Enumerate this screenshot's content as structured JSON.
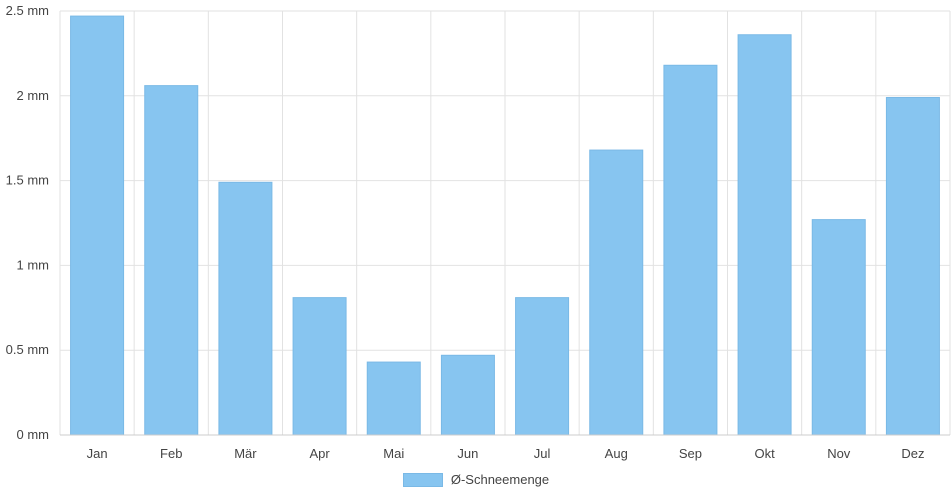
{
  "chart_data": {
    "type": "bar",
    "categories": [
      "Jan",
      "Feb",
      "Mär",
      "Apr",
      "Mai",
      "Jun",
      "Jul",
      "Aug",
      "Sep",
      "Okt",
      "Nov",
      "Dez"
    ],
    "series": [
      {
        "name": "Ø-Schneemenge",
        "values": [
          2.47,
          2.06,
          1.49,
          0.81,
          0.43,
          0.47,
          0.81,
          1.68,
          2.18,
          2.36,
          1.27,
          1.99
        ]
      }
    ],
    "y_ticks": [
      "0 mm",
      "0.5 mm",
      "1 mm",
      "1.5 mm",
      "2 mm",
      "2.5 mm"
    ],
    "ylim": [
      0,
      2.5
    ],
    "grid": true,
    "legend_position": "bottom-center",
    "colors": {
      "bar_fill": "#87c5f0",
      "bar_stroke": "#7ab9e6",
      "grid": "#e2e2e2",
      "axis": "#cccccc"
    }
  }
}
